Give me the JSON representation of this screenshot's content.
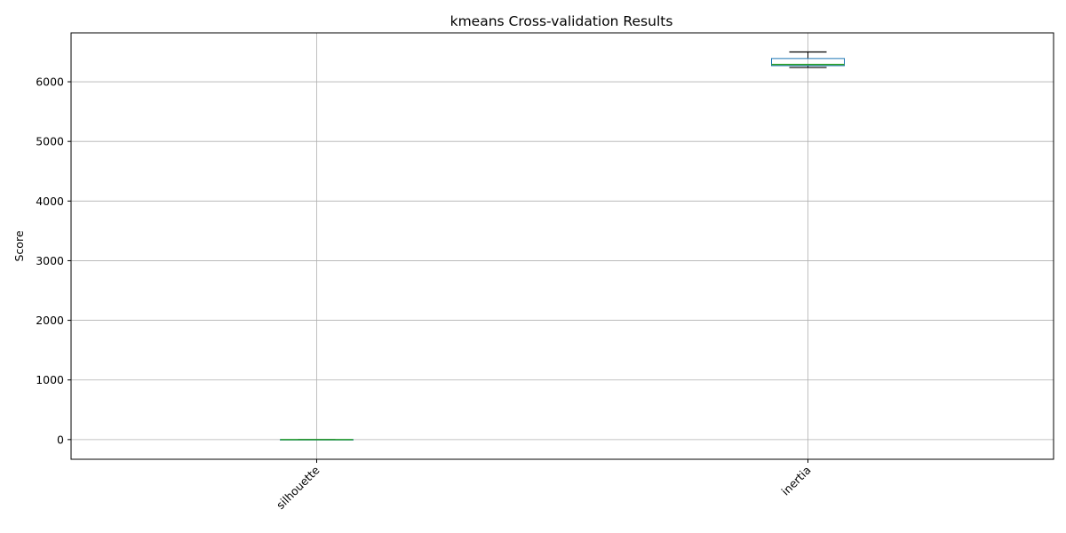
{
  "chart_data": {
    "type": "box",
    "title": "kmeans Cross-validation Results",
    "xlabel": "",
    "ylabel": "Score",
    "ylim": [
      -330,
      6820
    ],
    "yticks": [
      0,
      1000,
      2000,
      3000,
      4000,
      5000,
      6000
    ],
    "grid": true,
    "categories": [
      "silhouette",
      "inertia"
    ],
    "boxes": [
      {
        "category": "silhouette",
        "min": 0.3,
        "q1": 0.32,
        "median": 0.34,
        "q3": 0.36,
        "max": 0.38
      },
      {
        "category": "inertia",
        "min": 6240,
        "q1": 6270,
        "median": 6290,
        "q3": 6390,
        "max": 6500
      }
    ],
    "colors": {
      "box": "#1f77b4",
      "median": "#2ca02c",
      "whisker": "#000000",
      "grid": "#b0b0b0"
    }
  }
}
